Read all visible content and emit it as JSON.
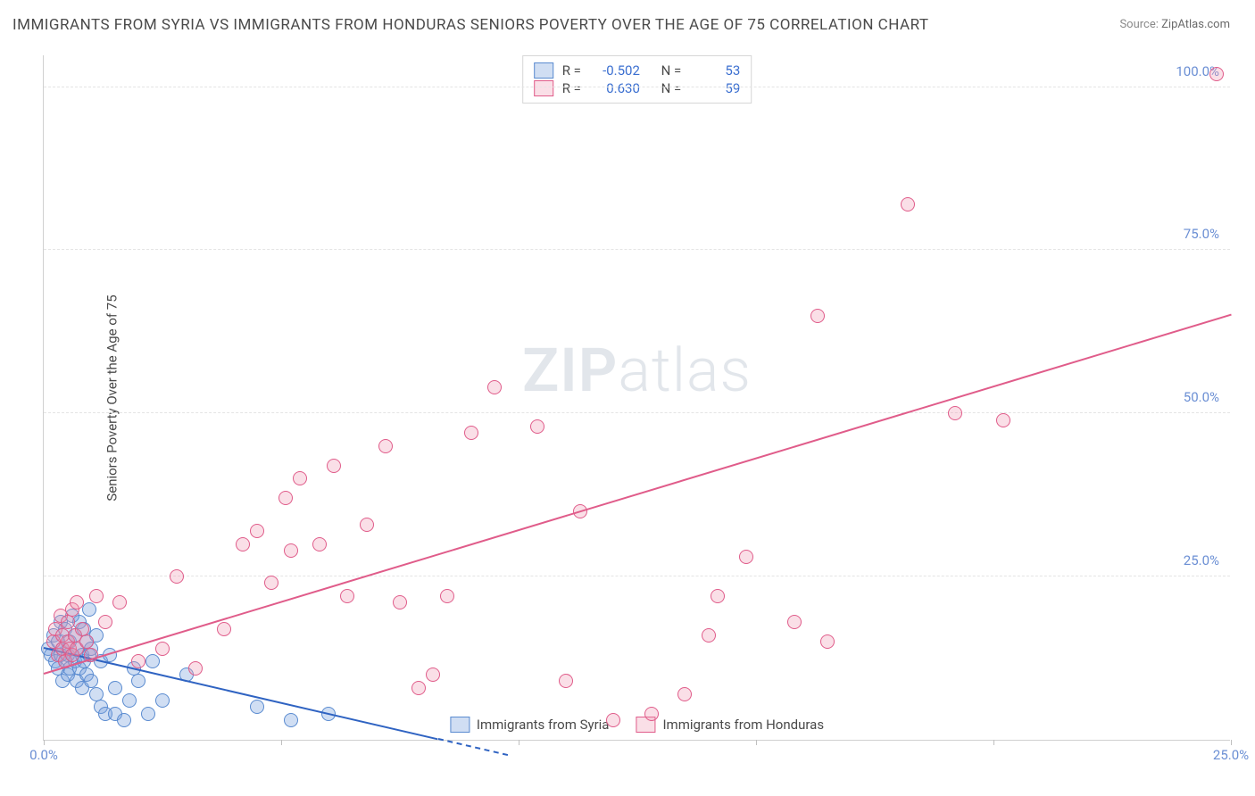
{
  "title": "IMMIGRANTS FROM SYRIA VS IMMIGRANTS FROM HONDURAS SENIORS POVERTY OVER THE AGE OF 75 CORRELATION CHART",
  "source_label": "Source:",
  "source_value": "ZipAtlas.com",
  "ylabel": "Seniors Poverty Over the Age of 75",
  "watermark_a": "ZIP",
  "watermark_b": "atlas",
  "chart": {
    "type": "scatter",
    "xlim": [
      0,
      25
    ],
    "ylim": [
      0,
      105
    ],
    "xtick_positions": [
      0,
      5,
      10,
      15,
      20,
      25
    ],
    "xtick_labels": [
      "0.0%",
      "",
      "",
      "",
      "",
      "25.0%"
    ],
    "ytick_positions": [
      25,
      50,
      75,
      100
    ],
    "ytick_labels": [
      "25.0%",
      "50.0%",
      "75.0%",
      "100.0%"
    ],
    "grid_color": "#e4e4e4",
    "axis_color": "#d0d0d0",
    "tick_color": "#6b8fd4",
    "background": "#ffffff",
    "marker_radius": 8,
    "marker_stroke_width": 1.5,
    "series": [
      {
        "name": "Immigrants from Syria",
        "fill": "rgba(120,160,220,0.35)",
        "stroke": "#5a8bd0",
        "R": "-0.502",
        "N": "53",
        "trend": {
          "x0": 0,
          "y0": 14,
          "x1": 8.3,
          "y1": 0,
          "color": "#2f63c2",
          "width": 2,
          "dash_extend": true
        },
        "points": [
          [
            0.1,
            14
          ],
          [
            0.15,
            13
          ],
          [
            0.2,
            16
          ],
          [
            0.25,
            12
          ],
          [
            0.3,
            15
          ],
          [
            0.3,
            11
          ],
          [
            0.35,
            18
          ],
          [
            0.35,
            13
          ],
          [
            0.4,
            14
          ],
          [
            0.4,
            9
          ],
          [
            0.45,
            17
          ],
          [
            0.45,
            12
          ],
          [
            0.5,
            13
          ],
          [
            0.5,
            10
          ],
          [
            0.55,
            15
          ],
          [
            0.55,
            11
          ],
          [
            0.6,
            19
          ],
          [
            0.6,
            13
          ],
          [
            0.65,
            16
          ],
          [
            0.65,
            12
          ],
          [
            0.7,
            14
          ],
          [
            0.7,
            9
          ],
          [
            0.75,
            18
          ],
          [
            0.75,
            11
          ],
          [
            0.8,
            13
          ],
          [
            0.8,
            8
          ],
          [
            0.85,
            17
          ],
          [
            0.85,
            12
          ],
          [
            0.9,
            15
          ],
          [
            0.9,
            10
          ],
          [
            0.95,
            20
          ],
          [
            0.95,
            13
          ],
          [
            1.0,
            14
          ],
          [
            1.0,
            9
          ],
          [
            1.1,
            16
          ],
          [
            1.1,
            7
          ],
          [
            1.2,
            12
          ],
          [
            1.2,
            5
          ],
          [
            1.3,
            4
          ],
          [
            1.4,
            13
          ],
          [
            1.5,
            8
          ],
          [
            1.5,
            4
          ],
          [
            1.7,
            3
          ],
          [
            1.8,
            6
          ],
          [
            1.9,
            11
          ],
          [
            2.0,
            9
          ],
          [
            2.2,
            4
          ],
          [
            2.3,
            12
          ],
          [
            2.5,
            6
          ],
          [
            3.0,
            10
          ],
          [
            4.5,
            5
          ],
          [
            5.2,
            3
          ],
          [
            6.0,
            4
          ]
        ]
      },
      {
        "name": "Immigrants from Honduras",
        "fill": "rgba(240,150,175,0.30)",
        "stroke": "#e05c8a",
        "R": "0.630",
        "N": "59",
        "trend": {
          "x0": 0,
          "y0": 10,
          "x1": 25,
          "y1": 65,
          "color": "#e05c8a",
          "width": 2,
          "dash_extend": false
        },
        "points": [
          [
            0.2,
            15
          ],
          [
            0.25,
            17
          ],
          [
            0.3,
            13
          ],
          [
            0.35,
            19
          ],
          [
            0.4,
            14
          ],
          [
            0.4,
            16
          ],
          [
            0.45,
            12
          ],
          [
            0.5,
            18
          ],
          [
            0.5,
            15
          ],
          [
            0.55,
            14
          ],
          [
            0.6,
            20
          ],
          [
            0.6,
            13
          ],
          [
            0.65,
            16
          ],
          [
            0.7,
            21
          ],
          [
            0.7,
            14
          ],
          [
            0.8,
            17
          ],
          [
            0.9,
            15
          ],
          [
            1.0,
            13
          ],
          [
            1.1,
            22
          ],
          [
            1.3,
            18
          ],
          [
            1.6,
            21
          ],
          [
            2.0,
            12
          ],
          [
            2.5,
            14
          ],
          [
            2.8,
            25
          ],
          [
            3.2,
            11
          ],
          [
            3.8,
            17
          ],
          [
            4.2,
            30
          ],
          [
            4.5,
            32
          ],
          [
            4.8,
            24
          ],
          [
            5.1,
            37
          ],
          [
            5.2,
            29
          ],
          [
            5.4,
            40
          ],
          [
            5.8,
            30
          ],
          [
            6.1,
            42
          ],
          [
            6.4,
            22
          ],
          [
            6.8,
            33
          ],
          [
            7.2,
            45
          ],
          [
            7.5,
            21
          ],
          [
            7.9,
            8
          ],
          [
            8.2,
            10
          ],
          [
            8.5,
            22
          ],
          [
            9.0,
            47
          ],
          [
            9.5,
            54
          ],
          [
            10.4,
            48
          ],
          [
            11.0,
            9
          ],
          [
            11.3,
            35
          ],
          [
            12.0,
            3
          ],
          [
            12.8,
            4
          ],
          [
            13.5,
            7
          ],
          [
            14.0,
            16
          ],
          [
            14.2,
            22
          ],
          [
            14.8,
            28
          ],
          [
            15.8,
            18
          ],
          [
            16.3,
            65
          ],
          [
            16.5,
            15
          ],
          [
            18.2,
            82
          ],
          [
            19.2,
            50
          ],
          [
            20.2,
            49
          ],
          [
            24.7,
            102
          ]
        ]
      }
    ]
  },
  "legend": {
    "series1_label": "Immigrants from Syria",
    "series2_label": "Immigrants from Honduras"
  },
  "stats": {
    "R_label": "R =",
    "N_label": "N ="
  }
}
